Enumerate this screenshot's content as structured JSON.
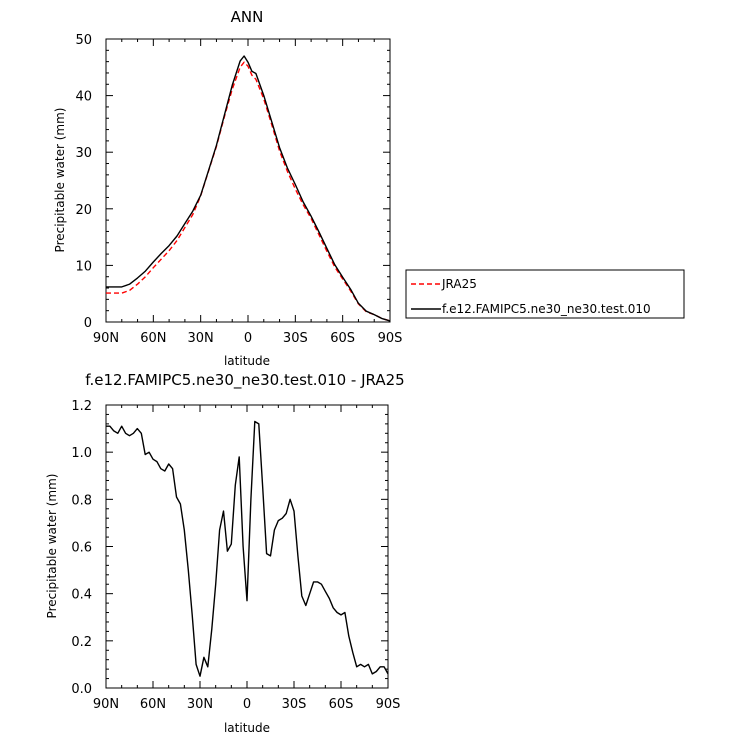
{
  "chart_data": [
    {
      "type": "line",
      "title": "ANN",
      "xlabel": "latitude",
      "ylabel": "Precipitable water (mm)",
      "xlim": [
        -90,
        90
      ],
      "ylim": [
        0,
        50
      ],
      "x_ticks": [
        -90,
        -60,
        -30,
        0,
        30,
        60,
        90
      ],
      "x_tick_labels": [
        "90N",
        "60N",
        "30N",
        "0",
        "30S",
        "60S",
        "90S"
      ],
      "y_ticks": [
        0,
        10,
        20,
        30,
        40,
        50
      ],
      "y_tick_labels": [
        "0",
        "10",
        "20",
        "30",
        "40",
        "50"
      ],
      "legend_position": "right",
      "series": [
        {
          "name": "JRA25",
          "color": "#ff0000",
          "style": "dashed",
          "x": [
            -90,
            -80,
            -75,
            -70,
            -65,
            -60,
            -55,
            -50,
            -45,
            -40,
            -35,
            -30,
            -25,
            -20,
            -15,
            -10,
            -5,
            -2.5,
            0,
            2.5,
            5,
            10,
            15,
            20,
            25,
            30,
            35,
            40,
            45,
            50,
            55,
            60,
            65,
            70,
            75,
            80,
            85,
            90
          ],
          "values": [
            5.1,
            5.1,
            5.6,
            6.7,
            8.0,
            9.6,
            11.1,
            12.6,
            14.4,
            16.7,
            19.0,
            22.3,
            26.7,
            31.0,
            36.2,
            41.1,
            45.0,
            45.9,
            45.2,
            43.6,
            42.9,
            39.4,
            34.9,
            30.2,
            26.6,
            23.5,
            20.7,
            18.3,
            15.4,
            12.5,
            9.7,
            7.6,
            5.5,
            3.2,
            1.8,
            1.3,
            0.6,
            0.2
          ]
        },
        {
          "name": "f.e12.FAMIPC5.ne30_ne30.test.010",
          "color": "#000000",
          "style": "solid",
          "x": [
            -90,
            -80,
            -75,
            -70,
            -65,
            -60,
            -55,
            -50,
            -45,
            -40,
            -35,
            -30,
            -25,
            -20,
            -15,
            -10,
            -5,
            -2.5,
            0,
            2.5,
            5,
            10,
            15,
            20,
            25,
            30,
            35,
            40,
            45,
            50,
            55,
            60,
            65,
            70,
            75,
            80,
            85,
            90
          ],
          "values": [
            6.2,
            6.2,
            6.7,
            7.8,
            9.0,
            10.6,
            12.1,
            13.5,
            15.2,
            17.4,
            19.6,
            22.4,
            26.8,
            31.2,
            36.5,
            41.8,
            46.1,
            47.0,
            45.9,
            44.3,
            43.9,
            40.0,
            35.4,
            30.8,
            27.2,
            24.3,
            21.2,
            18.7,
            15.9,
            13.0,
            10.1,
            7.9,
            5.8,
            3.3,
            1.9,
            1.3,
            0.6,
            0.2
          ]
        }
      ]
    },
    {
      "type": "line",
      "title": "f.e12.FAMIPC5.ne30_ne30.test.010 - JRA25",
      "xlabel": "latitude",
      "ylabel": "Precipitable water (mm)",
      "xlim": [
        -90,
        90
      ],
      "ylim": [
        0,
        1.2
      ],
      "x_ticks": [
        -90,
        -60,
        -30,
        0,
        30,
        60,
        90
      ],
      "x_tick_labels": [
        "90N",
        "60N",
        "30N",
        "0",
        "30S",
        "60S",
        "90S"
      ],
      "y_ticks": [
        0,
        0.2,
        0.4,
        0.6,
        0.8,
        1.0,
        1.2
      ],
      "y_tick_labels": [
        "0.0",
        "0.2",
        "0.4",
        "0.6",
        "0.8",
        "1.0",
        "1.2"
      ],
      "series": [
        {
          "color": "#000000",
          "style": "solid",
          "x": [
            -90,
            -87.5,
            -85,
            -82.5,
            -80,
            -77.5,
            -75,
            -72.5,
            -70,
            -67.5,
            -65,
            -62.5,
            -60,
            -57.5,
            -55,
            -52.5,
            -50,
            -47.5,
            -45,
            -42.5,
            -40,
            -37.5,
            -35,
            -32.5,
            -30,
            -27.5,
            -25,
            -22.5,
            -20,
            -17.5,
            -15,
            -12.5,
            -10,
            -7.5,
            -5,
            -2.5,
            0,
            2.5,
            5,
            7.5,
            10,
            12.5,
            15,
            17.5,
            20,
            22.5,
            25,
            27.5,
            30,
            32.5,
            35,
            37.5,
            40,
            42.5,
            45,
            47.5,
            50,
            52.5,
            55,
            57.5,
            60,
            62.5,
            65,
            67.5,
            70,
            72.5,
            75,
            77.5,
            80,
            82.5,
            85,
            87.5,
            90
          ],
          "values": [
            1.11,
            1.11,
            1.09,
            1.08,
            1.11,
            1.08,
            1.07,
            1.08,
            1.1,
            1.08,
            0.99,
            1.0,
            0.97,
            0.96,
            0.93,
            0.92,
            0.95,
            0.93,
            0.81,
            0.78,
            0.67,
            0.5,
            0.31,
            0.1,
            0.05,
            0.13,
            0.09,
            0.25,
            0.44,
            0.67,
            0.75,
            0.58,
            0.61,
            0.86,
            0.98,
            0.6,
            0.37,
            0.8,
            1.13,
            1.12,
            0.85,
            0.57,
            0.56,
            0.67,
            0.71,
            0.72,
            0.74,
            0.8,
            0.75,
            0.56,
            0.39,
            0.35,
            0.4,
            0.45,
            0.45,
            0.44,
            0.41,
            0.38,
            0.34,
            0.32,
            0.31,
            0.32,
            0.22,
            0.15,
            0.09,
            0.1,
            0.09,
            0.1,
            0.06,
            0.07,
            0.09,
            0.09,
            0.06
          ]
        }
      ]
    }
  ]
}
